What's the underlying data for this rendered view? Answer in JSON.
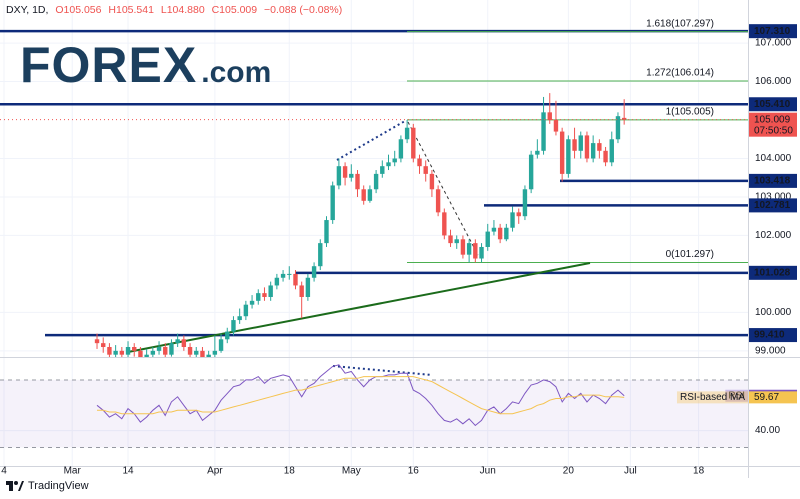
{
  "header": {
    "symbol": "DXY, 1D,",
    "open": "O105.056",
    "high": "H105.541",
    "low": "L104.880",
    "close": "C105.009",
    "change": "−0.088 (−0.08%)"
  },
  "logo": {
    "text": "FOREX",
    "suffix": ".com"
  },
  "footer": "TradingView",
  "chart_data": [
    {
      "type": "candlestick",
      "categories": [
        "4",
        null,
        null,
        null,
        null,
        null,
        null,
        null,
        null,
        null,
        null,
        "Mar",
        null,
        null,
        null,
        null,
        null,
        null,
        null,
        null,
        "14",
        null,
        null,
        null,
        null,
        null,
        null,
        null,
        null,
        null,
        null,
        null,
        null,
        null,
        "Apr",
        null,
        null,
        null,
        null,
        null,
        null,
        null,
        null,
        null,
        null,
        null,
        "18",
        null,
        null,
        null,
        null,
        null,
        null,
        null,
        null,
        null,
        "May",
        null,
        null,
        null,
        null,
        null,
        null,
        null,
        null,
        null,
        "16",
        null,
        null,
        null,
        null,
        null,
        null,
        null,
        null,
        null,
        null,
        null,
        "Jun",
        null,
        null,
        null,
        null,
        null,
        null,
        null,
        null,
        null,
        null,
        null,
        null,
        "20",
        null,
        null,
        null,
        null,
        null,
        null,
        null,
        null,
        null,
        "Jul",
        null,
        null,
        null,
        null,
        null,
        null,
        null,
        null,
        null,
        null,
        "18",
        null,
        null,
        null,
        null,
        null,
        null,
        null
      ],
      "open": [
        null,
        null,
        null,
        null,
        null,
        null,
        null,
        null,
        null,
        null,
        null,
        null,
        null,
        null,
        null,
        99.3,
        99.2,
        99.1,
        98.9,
        99.0,
        98.9,
        99.1,
        99.0,
        98.8,
        98.9,
        99.0,
        99.1,
        98.9,
        99.2,
        99.3,
        99.1,
        98.9,
        99.0,
        98.8,
        98.9,
        99.0,
        99.3,
        99.5,
        99.8,
        99.9,
        100.2,
        100.3,
        100.5,
        100.4,
        100.7,
        100.9,
        101.0,
        101.0,
        100.7,
        100.4,
        100.9,
        101.2,
        101.8,
        102.4,
        103.3,
        103.8,
        103.5,
        103.6,
        103.2,
        102.9,
        103.2,
        103.6,
        103.8,
        103.9,
        104.0,
        104.5,
        104.8,
        104.0,
        103.8,
        103.6,
        103.2,
        102.6,
        102.0,
        101.8,
        101.9,
        101.5,
        101.8,
        101.4,
        101.7,
        102.1,
        102.2,
        101.9,
        102.2,
        102.6,
        102.5,
        103.2,
        104.1,
        104.2,
        105.2,
        105.0,
        104.7,
        103.6,
        104.5,
        104.2,
        104.6,
        104.0,
        104.4,
        104.2,
        103.9,
        104.5,
        105.056,
        null,
        null,
        null,
        null,
        null,
        null,
        null,
        null,
        null,
        null,
        null,
        null,
        null,
        null,
        null,
        null,
        null,
        null,
        null
      ],
      "high": [
        null,
        null,
        null,
        null,
        null,
        null,
        null,
        null,
        null,
        null,
        null,
        null,
        null,
        null,
        null,
        99.45,
        99.35,
        99.2,
        99.15,
        99.1,
        99.25,
        99.2,
        99.1,
        99.05,
        99.1,
        99.25,
        99.2,
        99.3,
        99.45,
        99.4,
        99.2,
        99.1,
        99.1,
        99.0,
        99.4,
        99.45,
        99.6,
        99.9,
        100.1,
        100.3,
        100.45,
        100.6,
        100.65,
        100.8,
        101.0,
        101.1,
        101.2,
        101.1,
        100.8,
        101.0,
        101.3,
        101.9,
        102.5,
        103.4,
        104.0,
        103.9,
        103.85,
        103.7,
        103.3,
        103.3,
        103.7,
        103.95,
        104.1,
        104.2,
        104.6,
        105.0,
        104.9,
        104.1,
        103.95,
        103.7,
        103.3,
        102.7,
        102.15,
        102.0,
        102.0,
        101.9,
        101.9,
        101.8,
        102.3,
        102.4,
        102.3,
        102.3,
        102.75,
        102.7,
        103.3,
        104.2,
        104.5,
        105.6,
        105.7,
        105.5,
        104.8,
        104.6,
        104.8,
        104.7,
        104.7,
        104.6,
        104.5,
        104.3,
        104.7,
        105.2,
        105.541,
        null,
        null,
        null,
        null,
        null,
        null,
        null,
        null,
        null,
        null,
        null,
        null,
        null,
        null,
        null,
        null,
        null,
        null,
        null
      ],
      "low": [
        null,
        null,
        null,
        null,
        null,
        null,
        null,
        null,
        null,
        null,
        null,
        null,
        null,
        null,
        null,
        99.05,
        98.95,
        98.8,
        98.8,
        98.75,
        98.8,
        98.85,
        98.7,
        98.7,
        98.8,
        98.9,
        98.8,
        98.85,
        99.1,
        99.0,
        98.8,
        98.8,
        98.7,
        98.7,
        98.8,
        98.95,
        99.2,
        99.4,
        99.7,
        99.8,
        100.1,
        100.2,
        100.3,
        100.3,
        100.6,
        100.8,
        100.85,
        100.6,
        99.85,
        100.3,
        100.8,
        101.1,
        101.7,
        102.3,
        103.2,
        103.3,
        103.4,
        103.0,
        102.8,
        102.85,
        103.1,
        103.5,
        103.7,
        103.8,
        103.9,
        104.4,
        103.9,
        103.6,
        103.4,
        103.0,
        102.5,
        101.9,
        101.7,
        101.65,
        101.4,
        101.3,
        101.3,
        101.3,
        101.6,
        102.0,
        101.8,
        101.85,
        102.1,
        102.3,
        102.4,
        103.1,
        104.0,
        104.1,
        104.9,
        104.6,
        103.4,
        103.5,
        104.0,
        104.0,
        103.9,
        103.9,
        104.0,
        103.8,
        103.8,
        104.4,
        104.88,
        null,
        null,
        null,
        null,
        null,
        null,
        null,
        null,
        null,
        null,
        null,
        null,
        null,
        null,
        null,
        null,
        null,
        null,
        null
      ],
      "close": [
        null,
        null,
        null,
        null,
        null,
        null,
        null,
        null,
        null,
        null,
        null,
        null,
        null,
        null,
        null,
        99.2,
        99.1,
        98.9,
        99.0,
        98.9,
        99.1,
        99.0,
        98.8,
        98.9,
        99.0,
        99.1,
        98.9,
        99.2,
        99.3,
        99.1,
        98.9,
        99.0,
        98.8,
        98.9,
        99.0,
        99.3,
        99.5,
        99.8,
        99.9,
        100.2,
        100.3,
        100.5,
        100.4,
        100.7,
        100.9,
        101.0,
        101.0,
        100.7,
        100.4,
        100.9,
        101.2,
        101.8,
        102.4,
        103.3,
        103.8,
        103.5,
        103.6,
        103.2,
        102.9,
        103.2,
        103.6,
        103.8,
        103.9,
        104.0,
        104.5,
        104.8,
        104.0,
        103.8,
        103.6,
        103.2,
        102.6,
        102.0,
        101.8,
        101.9,
        101.5,
        101.8,
        101.4,
        101.7,
        102.1,
        102.2,
        101.9,
        102.2,
        102.6,
        102.5,
        103.2,
        104.1,
        104.2,
        105.2,
        105.0,
        104.7,
        103.6,
        104.5,
        104.2,
        104.6,
        104.0,
        104.4,
        104.2,
        103.9,
        104.5,
        105.1,
        105.009,
        null,
        null,
        null,
        null,
        null,
        null,
        null,
        null,
        null,
        null,
        null,
        null,
        null,
        null,
        null,
        null,
        null,
        null,
        null
      ],
      "up_color": "#26a69a",
      "down_color": "#ef5350",
      "ylim": [
        98.84,
        108.12
      ],
      "yticks": [
        {
          "value": 99,
          "label": "99.000"
        },
        {
          "value": 100,
          "label": "100.000"
        },
        {
          "value": 102,
          "label": "102.000"
        },
        {
          "value": 103,
          "label": "103.000"
        },
        {
          "value": 104,
          "label": "104.000"
        },
        {
          "value": 106,
          "label": "106.000"
        },
        {
          "value": 107,
          "label": "107.000"
        }
      ],
      "grid": true,
      "levels": [
        {
          "value": 107.31,
          "label": "107.310"
        },
        {
          "value": 105.41,
          "label": "105.410"
        },
        {
          "value": 103.418,
          "label": "103.418"
        },
        {
          "value": 102.781,
          "label": "102.781"
        },
        {
          "value": 101.028,
          "label": "101.028"
        },
        {
          "value": 99.41,
          "label": "99.410"
        }
      ],
      "level_color": "#0d2a7a",
      "fib_levels": [
        {
          "value": 107.297,
          "label": "1.618(107.297)"
        },
        {
          "value": 106.014,
          "label": "1.272(106.014)"
        },
        {
          "value": 105.005,
          "label": "1(105.005)"
        },
        {
          "value": 101.297,
          "label": "0(101.297)"
        }
      ],
      "fib_color": "#4caf50",
      "countdown": "07:50:50"
    },
    {
      "type": "line",
      "series": [
        {
          "name": "RSI",
          "color": "#7e57c2",
          "values": [
            null,
            null,
            null,
            null,
            null,
            null,
            null,
            null,
            null,
            null,
            null,
            null,
            null,
            null,
            null,
            55,
            52,
            48,
            50,
            47,
            53,
            50,
            45,
            48,
            52,
            55,
            49,
            57,
            60,
            55,
            50,
            52,
            46,
            49,
            52,
            58,
            62,
            66,
            67,
            70,
            70,
            72,
            68,
            71,
            72,
            73,
            72,
            66,
            60,
            66,
            68,
            72,
            75,
            78,
            79,
            74,
            75,
            70,
            66,
            70,
            72,
            72,
            73,
            73,
            74,
            74,
            64,
            62,
            59,
            55,
            50,
            46,
            45,
            47,
            44,
            47,
            43,
            46,
            52,
            54,
            50,
            53,
            57,
            56,
            62,
            67,
            68,
            70,
            69,
            66,
            57,
            62,
            59,
            62,
            57,
            61,
            59,
            56,
            61,
            64,
            60.63,
            null,
            null,
            null,
            null,
            null,
            null,
            null,
            null,
            null,
            null,
            null,
            null,
            null,
            null,
            null,
            null,
            null,
            null,
            null
          ]
        },
        {
          "name": "RSI-based MA",
          "color": "#f5c451",
          "values": [
            null,
            null,
            null,
            null,
            null,
            null,
            null,
            null,
            null,
            null,
            null,
            null,
            null,
            null,
            null,
            52,
            52,
            51,
            51,
            50,
            50,
            50,
            50,
            50,
            50,
            51,
            51,
            51,
            52,
            52,
            52,
            52,
            51,
            51,
            51,
            52,
            53,
            54,
            55,
            56,
            57,
            58,
            59,
            60,
            61,
            62,
            63,
            64,
            64,
            65,
            66,
            67,
            68,
            69,
            70,
            71,
            71,
            71,
            72,
            72,
            72,
            72,
            72,
            72,
            72,
            72,
            72,
            71,
            70,
            69,
            67,
            65,
            63,
            61,
            59,
            57,
            55,
            53,
            52,
            51,
            50,
            50,
            50,
            51,
            52,
            53,
            55,
            56,
            58,
            59,
            59,
            60,
            60,
            61,
            61,
            61,
            61,
            60,
            60,
            60,
            59.67,
            null,
            null,
            null,
            null,
            null,
            null,
            null,
            null,
            null,
            null,
            null,
            null,
            null,
            null,
            null,
            null,
            null,
            null,
            null
          ]
        }
      ],
      "ylim": [
        19,
        83
      ],
      "yticks": [
        {
          "value": 40,
          "label": "40.00"
        }
      ],
      "band": [
        30,
        70
      ]
    }
  ]
}
